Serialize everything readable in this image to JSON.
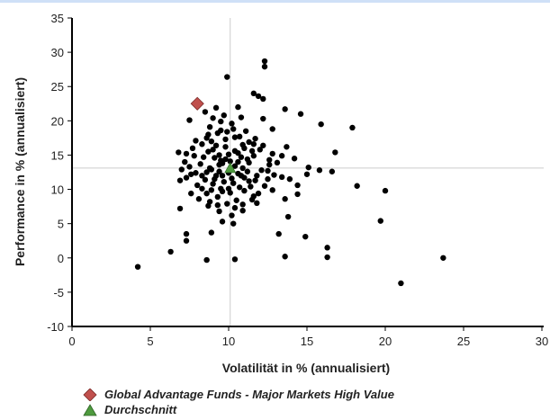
{
  "chart_data": {
    "type": "scatter",
    "xlabel": "Volatilität in % (annualisiert)",
    "ylabel": "Performance in % (annualisiert)",
    "xlim": [
      0,
      30
    ],
    "ylim": [
      -10,
      35
    ],
    "x_ticks": [
      "0",
      "5",
      "10",
      "15",
      "20",
      "25",
      "30"
    ],
    "y_ticks": [
      "35",
      "30",
      "25",
      "20",
      "15",
      "10",
      "5",
      "0",
      "-5",
      "-10"
    ],
    "grid": false,
    "reference_lines": {
      "x": 10.1,
      "y": 13.1
    },
    "legend_position": "bottom-left",
    "series": [
      {
        "name": "Global Advantage Funds - Major Markets High Value",
        "marker": "diamond",
        "color": "#c0504d",
        "points": [
          [
            8.0,
            22.5
          ]
        ]
      },
      {
        "name": "Durchschnitt",
        "marker": "triangle",
        "color": "#4e9a3e",
        "points": [
          [
            10.1,
            13.1
          ]
        ]
      },
      {
        "marker": "circle",
        "color": "#000000",
        "points": [
          [
            4.2,
            -1.3
          ],
          [
            6.3,
            0.9
          ],
          [
            7.3,
            2.5
          ],
          [
            7.3,
            3.5
          ],
          [
            6.9,
            7.2
          ],
          [
            8.6,
            -0.3
          ],
          [
            10.4,
            -0.2
          ],
          [
            9.9,
            26.4
          ],
          [
            12.3,
            28.7
          ],
          [
            12.3,
            27.9
          ],
          [
            11.6,
            24.0
          ],
          [
            11.9,
            23.6
          ],
          [
            12.2,
            23.2
          ],
          [
            13.6,
            21.7
          ],
          [
            14.6,
            21.0
          ],
          [
            15.9,
            19.5
          ],
          [
            17.9,
            19.0
          ],
          [
            16.8,
            15.4
          ],
          [
            18.2,
            10.5
          ],
          [
            20.0,
            9.8
          ],
          [
            19.7,
            5.4
          ],
          [
            23.7,
            0.0
          ],
          [
            21.0,
            -3.7
          ],
          [
            16.3,
            1.5
          ],
          [
            16.3,
            0.1
          ],
          [
            14.9,
            3.1
          ],
          [
            13.6,
            0.2
          ],
          [
            13.8,
            6.0
          ],
          [
            13.2,
            3.5
          ],
          [
            15.8,
            12.8
          ],
          [
            16.6,
            12.6
          ],
          [
            14.4,
            9.3
          ],
          [
            13.6,
            8.6
          ],
          [
            15.1,
            13.2
          ],
          [
            14.2,
            14.5
          ],
          [
            13.7,
            16.2
          ],
          [
            12.2,
            20.3
          ],
          [
            12.8,
            18.8
          ],
          [
            13.4,
            14.9
          ],
          [
            14.4,
            10.6
          ],
          [
            12.6,
            13.6
          ],
          [
            7.5,
            20.1
          ],
          [
            8.5,
            21.3
          ],
          [
            9.2,
            21.9
          ],
          [
            9.5,
            19.9
          ],
          [
            10.6,
            22.0
          ],
          [
            11.1,
            18.5
          ],
          [
            11.3,
            16.9
          ],
          [
            11.7,
            17.4
          ],
          [
            12.0,
            15.8
          ],
          [
            12.6,
            14.3
          ],
          [
            11.8,
            12.0
          ],
          [
            11.3,
            11.2
          ],
          [
            12.5,
            11.5
          ],
          [
            11.0,
            9.8
          ],
          [
            11.9,
            9.4
          ],
          [
            12.3,
            10.5
          ],
          [
            11.5,
            8.5
          ],
          [
            10.9,
            7.8
          ],
          [
            10.2,
            6.2
          ],
          [
            10.3,
            5.0
          ],
          [
            9.6,
            5.3
          ],
          [
            8.9,
            3.7
          ],
          [
            9.4,
            6.8
          ],
          [
            8.7,
            7.6
          ],
          [
            8.1,
            8.6
          ],
          [
            7.6,
            9.4
          ],
          [
            8.3,
            10.1
          ],
          [
            6.9,
            11.3
          ],
          [
            7.3,
            11.7
          ],
          [
            7.9,
            12.4
          ],
          [
            7.0,
            12.9
          ],
          [
            7.5,
            13.3
          ],
          [
            8.8,
            13.1
          ],
          [
            9.4,
            13.6
          ],
          [
            9.6,
            13.8
          ],
          [
            9.8,
            14.4
          ],
          [
            8.4,
            14.7
          ],
          [
            7.3,
            15.2
          ],
          [
            6.8,
            15.4
          ],
          [
            7.7,
            16.0
          ],
          [
            8.3,
            16.6
          ],
          [
            8.9,
            17.0
          ],
          [
            9.3,
            18.2
          ],
          [
            9.5,
            18.6
          ],
          [
            10.3,
            18.8
          ],
          [
            10.7,
            17.7
          ],
          [
            10.9,
            16.5
          ],
          [
            10.4,
            15.6
          ],
          [
            10.0,
            15.1
          ],
          [
            9.8,
            16.2
          ],
          [
            9.0,
            15.8
          ],
          [
            8.6,
            12.5
          ],
          [
            9.2,
            12.0
          ],
          [
            9.7,
            11.1
          ],
          [
            10.2,
            11.6
          ],
          [
            10.6,
            12.3
          ],
          [
            10.9,
            13.1
          ],
          [
            11.3,
            13.9
          ],
          [
            11.6,
            14.9
          ],
          [
            10.7,
            10.3
          ],
          [
            10.1,
            9.5
          ],
          [
            9.3,
            8.9
          ],
          [
            8.6,
            9.4
          ],
          [
            8.0,
            10.6
          ],
          [
            8.5,
            11.4
          ],
          [
            9.0,
            10.8
          ],
          [
            9.5,
            10.1
          ],
          [
            9.9,
            7.9
          ],
          [
            10.5,
            8.4
          ],
          [
            11.2,
            12.6
          ],
          [
            11.4,
            10.4
          ],
          [
            12.1,
            12.8
          ],
          [
            12.9,
            12.1
          ],
          [
            13.4,
            11.8
          ],
          [
            10.8,
            20.5
          ],
          [
            9.7,
            20.8
          ],
          [
            8.8,
            19.1
          ],
          [
            10.2,
            19.6
          ],
          [
            10.6,
            14.0
          ],
          [
            9.1,
            14.6
          ],
          [
            8.2,
            13.7
          ],
          [
            7.8,
            14.9
          ],
          [
            9.4,
            12.6
          ],
          [
            10.0,
            12.4
          ],
          [
            10.4,
            13.4
          ],
          [
            10.8,
            14.7
          ],
          [
            11.5,
            15.6
          ],
          [
            12.2,
            16.4
          ],
          [
            12.8,
            15.2
          ],
          [
            13.1,
            13.9
          ],
          [
            12.5,
            12.7
          ],
          [
            11.7,
            11.3
          ],
          [
            11.0,
            11.7
          ],
          [
            10.3,
            10.9
          ],
          [
            9.6,
            9.7
          ],
          [
            8.9,
            9.9
          ],
          [
            8.3,
            12.0
          ],
          [
            8.9,
            12.9
          ],
          [
            9.5,
            14.2
          ],
          [
            10.1,
            14.1
          ],
          [
            10.6,
            15.3
          ],
          [
            11.0,
            16.0
          ],
          [
            11.6,
            16.6
          ],
          [
            9.2,
            16.4
          ],
          [
            9.8,
            17.3
          ],
          [
            10.4,
            17.6
          ],
          [
            8.7,
            18.0
          ],
          [
            9.9,
            18.4
          ],
          [
            9.4,
            15.0
          ],
          [
            8.7,
            15.5
          ],
          [
            10.8,
            12.0
          ],
          [
            11.2,
            14.4
          ],
          [
            7.6,
            12.2
          ],
          [
            7.2,
            14.0
          ],
          [
            9.1,
            11.5
          ],
          [
            9.6,
            12.0
          ],
          [
            10.0,
            10.1
          ],
          [
            11.6,
            9.0
          ],
          [
            12.8,
            9.9
          ],
          [
            13.9,
            11.5
          ],
          [
            15.0,
            12.2
          ],
          [
            9.3,
            7.7
          ],
          [
            8.8,
            8.2
          ],
          [
            10.4,
            7.3
          ],
          [
            10.9,
            6.9
          ],
          [
            11.8,
            8.0
          ],
          [
            7.9,
            17.1
          ],
          [
            8.6,
            17.5
          ],
          [
            9.0,
            20.4
          ]
        ]
      }
    ]
  }
}
